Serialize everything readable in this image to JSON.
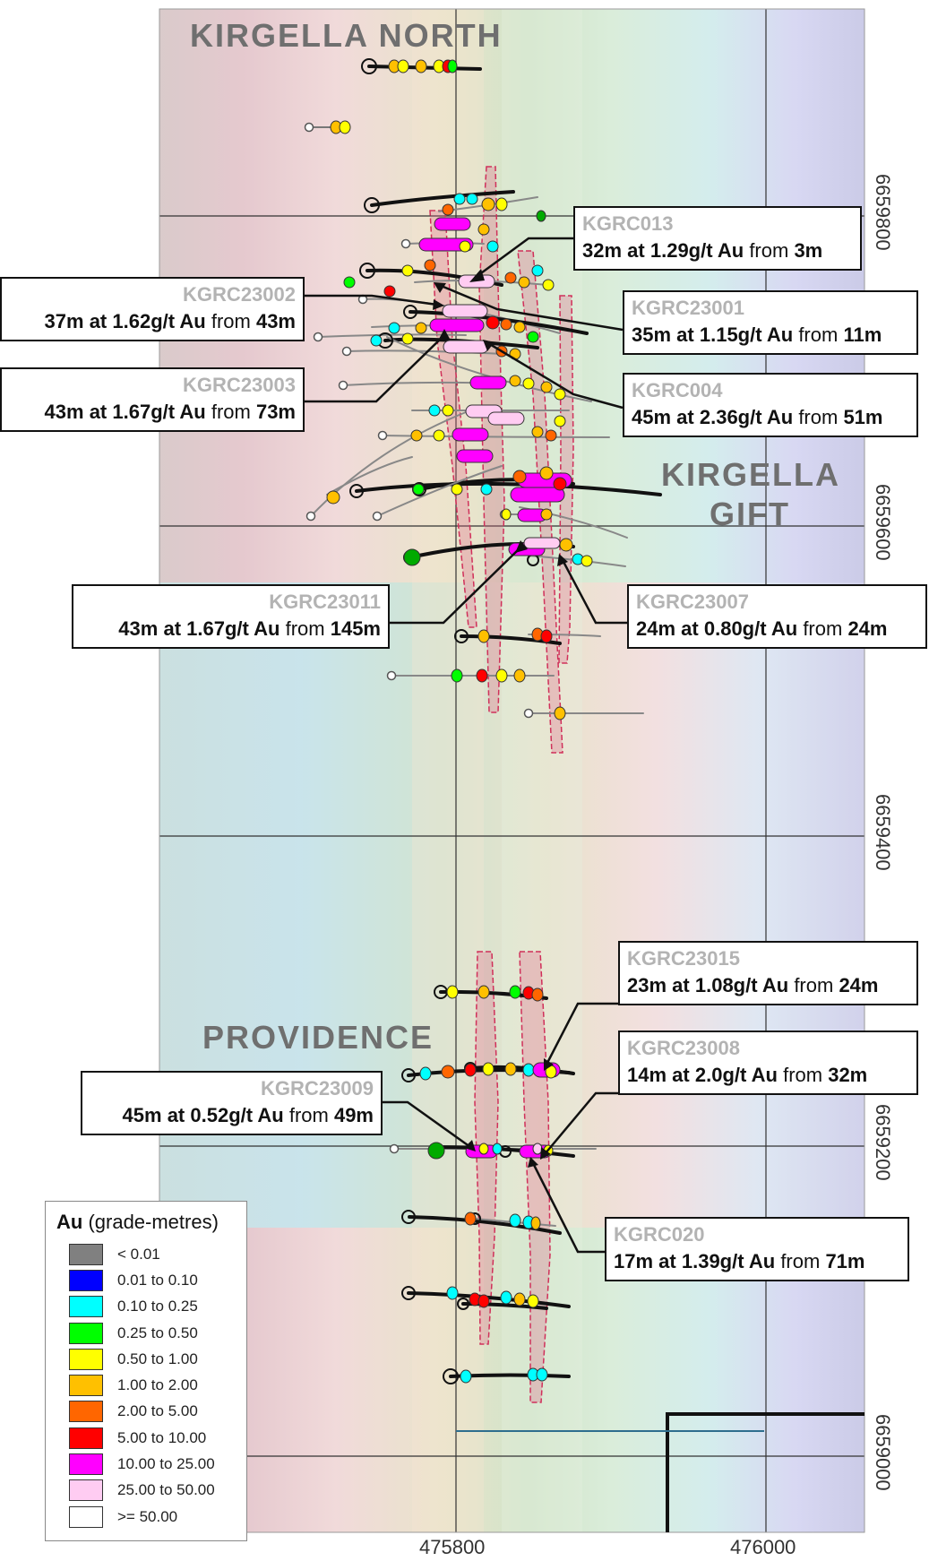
{
  "regions": {
    "north": "KIRGELLA NORTH",
    "gift_line1": "KIRGELLA",
    "gift_line2": "GIFT",
    "providence": "PROVIDENCE"
  },
  "eastings": [
    "475800",
    "476000"
  ],
  "northings": [
    "6659800",
    "6659600",
    "6659400",
    "6659200",
    "6659000"
  ],
  "callouts": [
    {
      "hole": "KGRC013",
      "len": "32m",
      "grade": "1.29g/t Au",
      "from_word": "from",
      "depth": "3m"
    },
    {
      "hole": "KGRC23002",
      "len": "37m",
      "grade": "1.62g/t Au",
      "from_word": "from",
      "depth": "43m"
    },
    {
      "hole": "KGRC23001",
      "len": "35m",
      "grade": "1.15g/t Au",
      "from_word": "from",
      "depth": "11m"
    },
    {
      "hole": "KGRC23003",
      "len": "43m",
      "grade": "1.67g/t Au",
      "from_word": "from",
      "depth": "73m"
    },
    {
      "hole": "KGRC004",
      "len": "45m",
      "grade": "2.36g/t Au",
      "from_word": "from",
      "depth": "51m"
    },
    {
      "hole": "KGRC23011",
      "len": "43m",
      "grade": "1.67g/t Au",
      "from_word": "from",
      "depth": "145m"
    },
    {
      "hole": "KGRC23007",
      "len": "24m",
      "grade": "0.80g/t Au",
      "from_word": "from",
      "depth": "24m"
    },
    {
      "hole": "KGRC23015",
      "len": "23m",
      "grade": "1.08g/t Au",
      "from_word": "from",
      "depth": "24m"
    },
    {
      "hole": "KGRC23008",
      "len": "14m",
      "grade": "2.0g/t Au",
      "from_word": "from",
      "depth": "32m"
    },
    {
      "hole": "KGRC23009",
      "len": "45m",
      "grade": "0.52g/t Au",
      "from_word": "from",
      "depth": "49m"
    },
    {
      "hole": "KGRC020",
      "len": "17m",
      "grade": "1.39g/t Au",
      "from_word": "from",
      "depth": "71m"
    }
  ],
  "legend": {
    "title_bold": "Au",
    "title_rest": " (grade-metres)",
    "items": [
      {
        "label": "< 0.01",
        "color": "#808080"
      },
      {
        "label": "0.01 to 0.10",
        "color": "#0000ff"
      },
      {
        "label": "0.10 to 0.25",
        "color": "#00ffff"
      },
      {
        "label": "0.25 to 0.50",
        "color": "#00ff00"
      },
      {
        "label": "0.50 to 1.00",
        "color": "#ffff00"
      },
      {
        "label": "1.00 to 2.00",
        "color": "#ffc000"
      },
      {
        "label": "2.00 to 5.00",
        "color": "#ff6600"
      },
      {
        "label": "5.00 to 10.00",
        "color": "#ff0000"
      },
      {
        "label": "10.00 to 25.00",
        "color": "#ff00ff"
      },
      {
        "label": "25.00 to 50.00",
        "color": "#ffccf2"
      },
      {
        "label": ">= 50.00",
        "color": "#ffffff"
      }
    ]
  }
}
